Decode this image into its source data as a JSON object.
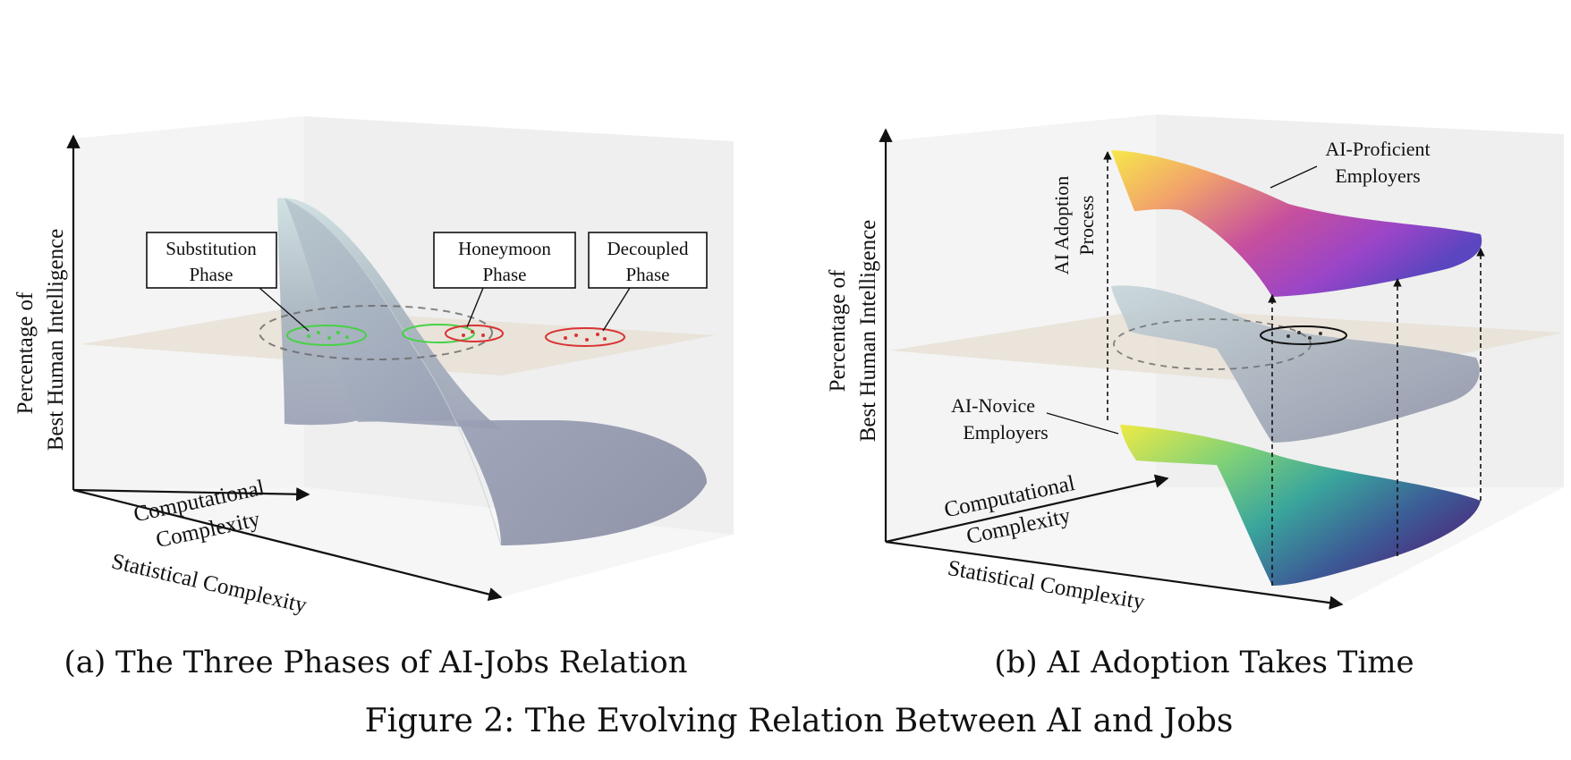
{
  "panel_a": {
    "y_axis_label_line1": "Percentage of",
    "y_axis_label_line2": "Best Human Intelligence",
    "x_axis_back_label_line1": "Computational",
    "x_axis_back_label_line2": "Complexity",
    "x_axis_front_label": "Statistical Complexity",
    "callouts": {
      "substitution_line1": "Substitution",
      "substitution_line2": "Phase",
      "honeymoon_line1": "Honeymoon",
      "honeymoon_line2": "Phase",
      "decoupled_line1": "Decoupled",
      "decoupled_line2": "Phase"
    },
    "caption": "(a) The Three Phases of AI-Jobs Relation"
  },
  "panel_b": {
    "y_axis_label_line1": "Percentage of",
    "y_axis_label_line2": "Best Human Intelligence",
    "x_axis_back_label_line1": "Computational",
    "x_axis_back_label_line2": "Complexity",
    "x_axis_front_label": "Statistical Complexity",
    "adoption_label_line1": "AI Adoption",
    "adoption_label_line2": "Process",
    "proficient_line1": "AI-Proficient",
    "proficient_line2": "Employers",
    "novice_line1": "AI-Novice",
    "novice_line2": "Employers",
    "caption": "(b) AI Adoption Takes Time"
  },
  "figure_caption": "Figure 2: The Evolving Relation Between AI and Jobs",
  "colors": {
    "surface_gray_light": "#c9d8dc",
    "surface_gray_dark": "#8a8ea3",
    "threshold_plane": "#e9e0d6",
    "substitution_green": "#47d147",
    "decoupled_red": "#d93333",
    "plasma_yellow": "#f0e442",
    "plasma_purple": "#5b3fb0",
    "viridis_yellow": "#e8e840",
    "viridis_purple": "#4b2a80"
  }
}
